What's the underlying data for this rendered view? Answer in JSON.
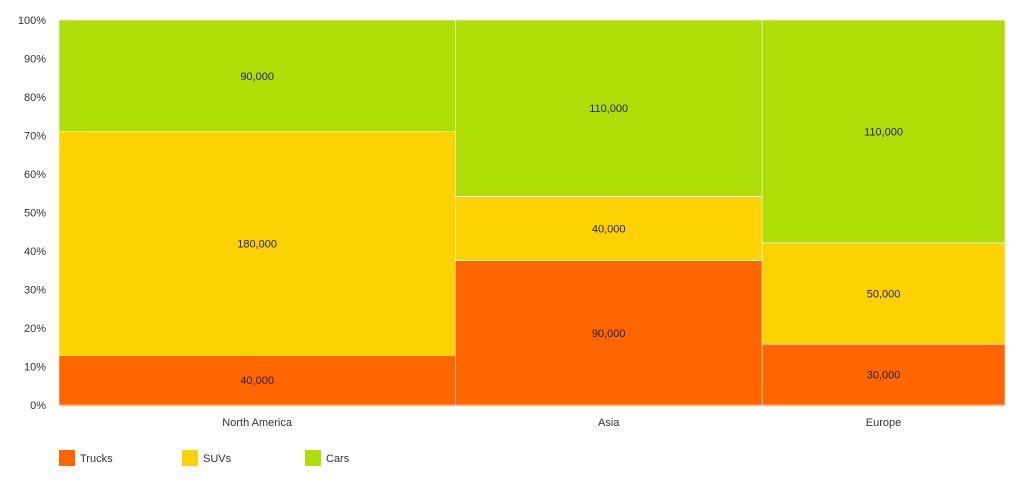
{
  "chart_data": {
    "type": "bar",
    "variant": "marimekko",
    "categories": [
      "North America",
      "Asia",
      "Europe"
    ],
    "series": [
      {
        "name": "Trucks",
        "values": [
          40000,
          90000,
          30000
        ],
        "color": "#ff6600"
      },
      {
        "name": "SUVs",
        "values": [
          180000,
          40000,
          50000
        ],
        "color": "#fcd202"
      },
      {
        "name": "Cars",
        "values": [
          90000,
          110000,
          110000
        ],
        "color": "#b0de09"
      }
    ],
    "data_labels": [
      [
        "40,000",
        "90,000",
        "30,000"
      ],
      [
        "180,000",
        "40,000",
        "50,000"
      ],
      [
        "90,000",
        "110,000",
        "110,000"
      ]
    ],
    "y_ticks": [
      "0%",
      "10%",
      "20%",
      "30%",
      "40%",
      "50%",
      "60%",
      "70%",
      "80%",
      "90%",
      "100%"
    ],
    "ylim": [
      0,
      100
    ],
    "grid": false,
    "legend_position": "bottom-left",
    "title": "",
    "xlabel": "",
    "ylabel": ""
  }
}
